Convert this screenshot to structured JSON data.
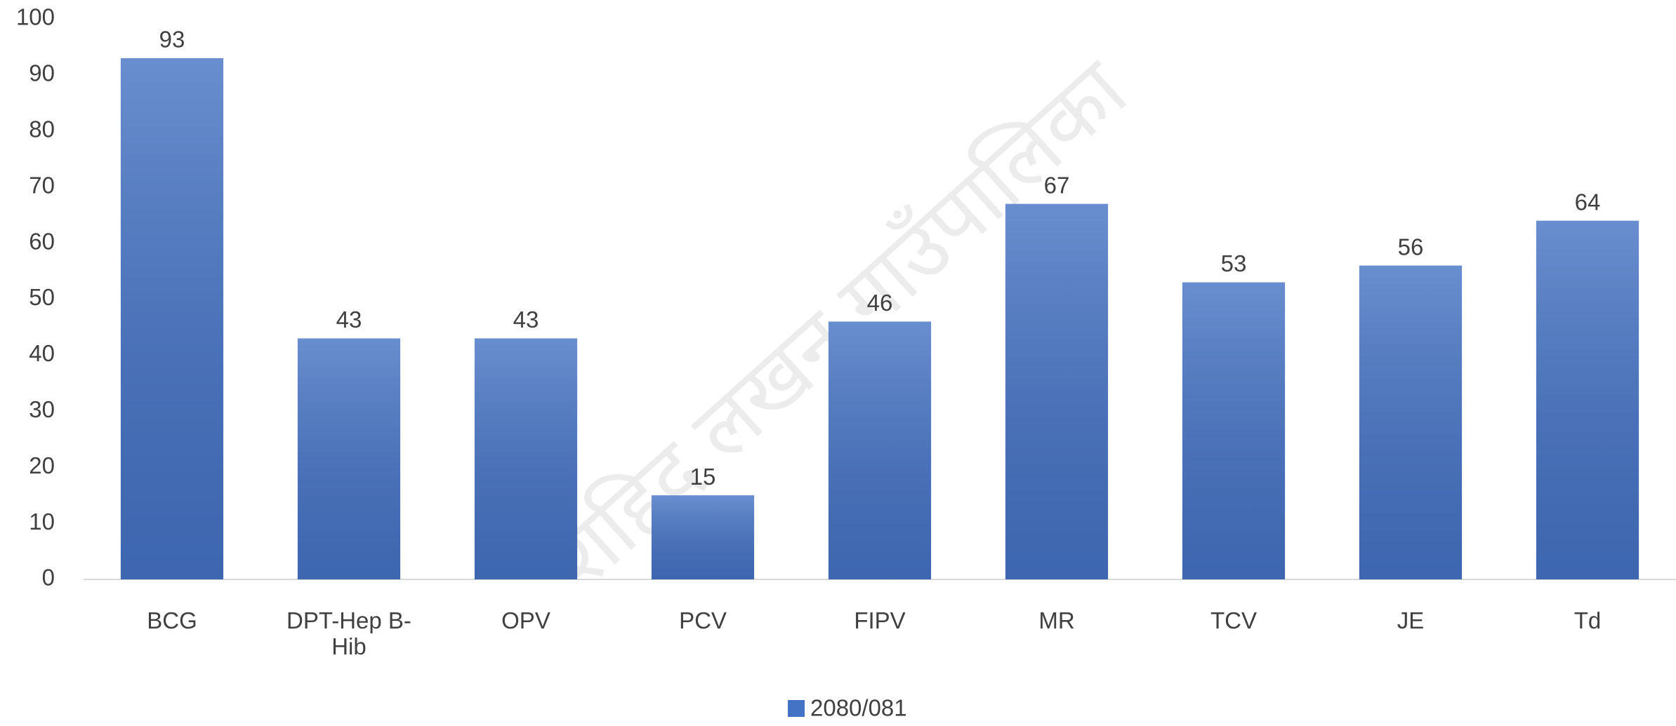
{
  "chart_data": {
    "type": "bar",
    "categories": [
      "BCG",
      "DPT-Hep B-Hib",
      "OPV",
      "PCV",
      "FIPV",
      "MR",
      "TCV",
      "JE",
      "Td"
    ],
    "series": [
      {
        "name": "2080/081",
        "color": "#4472c4",
        "values": [
          93,
          43,
          43,
          15,
          46,
          67,
          53,
          56,
          64
        ]
      }
    ],
    "ylim": [
      0,
      100
    ],
    "yticks": [
      0,
      10,
      20,
      30,
      40,
      50,
      60,
      70,
      80,
      90,
      100
    ],
    "grid": false,
    "legend": "bottom",
    "watermark": "शहिद लखन गाउँपालिका"
  }
}
